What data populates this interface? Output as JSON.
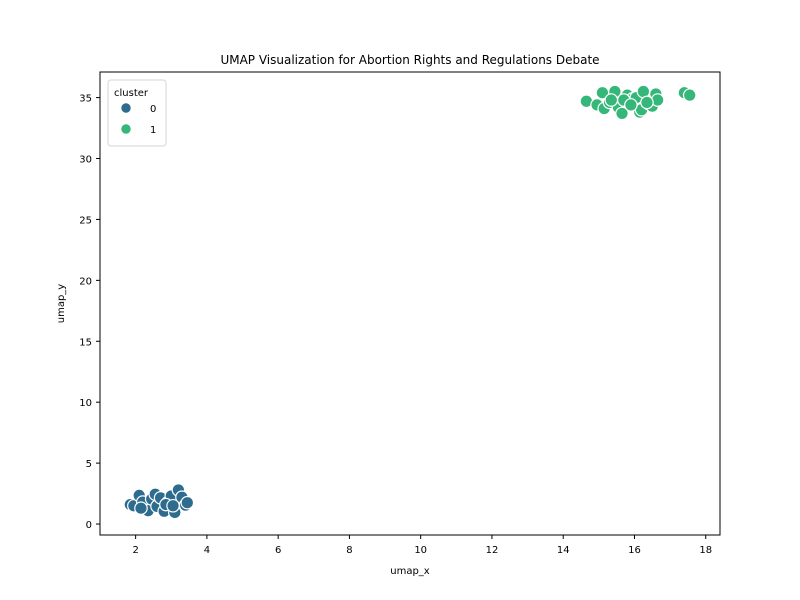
{
  "chart_data": {
    "type": "scatter",
    "title": "UMAP Visualization for Abortion Rights and Regulations Debate",
    "xlabel": "umap_x",
    "ylabel": "umap_y",
    "xlim": [
      1.0,
      18.4
    ],
    "ylim": [
      -0.9,
      37.1
    ],
    "xticks": [
      2,
      4,
      6,
      8,
      10,
      12,
      14,
      16,
      18
    ],
    "yticks": [
      0,
      5,
      10,
      15,
      20,
      25,
      30,
      35
    ],
    "grid": false,
    "legend": {
      "title": "cluster",
      "placement": "top-left",
      "entries": [
        "0",
        "1"
      ]
    },
    "colors": {
      "0": "#2d6b8f",
      "1": "#35b779"
    },
    "series": [
      {
        "name": "0",
        "points": [
          [
            1.85,
            1.6
          ],
          [
            1.95,
            1.5
          ],
          [
            2.1,
            2.35
          ],
          [
            2.2,
            1.8
          ],
          [
            2.35,
            1.1
          ],
          [
            2.45,
            2.05
          ],
          [
            2.55,
            2.45
          ],
          [
            2.6,
            1.45
          ],
          [
            2.7,
            2.15
          ],
          [
            2.8,
            1.05
          ],
          [
            2.9,
            1.75
          ],
          [
            3.0,
            2.3
          ],
          [
            3.1,
            0.95
          ],
          [
            3.2,
            2.8
          ],
          [
            3.3,
            2.2
          ],
          [
            3.4,
            1.55
          ],
          [
            3.45,
            1.75
          ],
          [
            2.15,
            1.3
          ],
          [
            2.85,
            1.6
          ],
          [
            3.05,
            1.5
          ]
        ]
      },
      {
        "name": "1",
        "points": [
          [
            14.65,
            34.7
          ],
          [
            14.95,
            34.4
          ],
          [
            15.1,
            35.4
          ],
          [
            15.15,
            34.1
          ],
          [
            15.3,
            34.6
          ],
          [
            15.45,
            35.5
          ],
          [
            15.55,
            34.2
          ],
          [
            15.65,
            33.7
          ],
          [
            15.8,
            35.2
          ],
          [
            15.95,
            34.9
          ],
          [
            16.05,
            35.0
          ],
          [
            16.15,
            33.8
          ],
          [
            16.2,
            34.0
          ],
          [
            16.25,
            35.5
          ],
          [
            16.4,
            34.5
          ],
          [
            16.5,
            34.3
          ],
          [
            16.6,
            35.3
          ],
          [
            16.65,
            34.8
          ],
          [
            17.4,
            35.4
          ],
          [
            17.55,
            35.2
          ],
          [
            15.7,
            34.8
          ],
          [
            16.35,
            34.6
          ],
          [
            15.35,
            34.8
          ],
          [
            15.9,
            34.4
          ]
        ]
      }
    ]
  }
}
